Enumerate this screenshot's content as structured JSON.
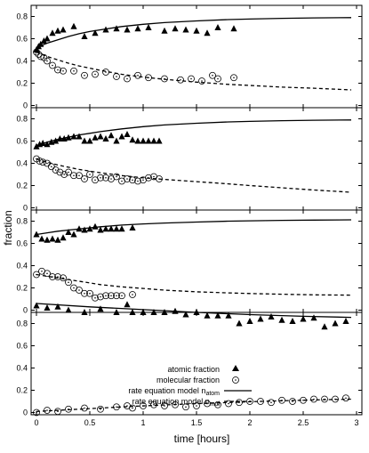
{
  "chart_data": {
    "type": "scatter",
    "xlabel": "time [hours]",
    "ylabel": "fraction",
    "xlim": [
      -0.05,
      3.05
    ],
    "ylim": [
      -0.02,
      0.9
    ],
    "x_ticks": [
      0,
      0.5,
      1,
      1.5,
      2,
      2.5,
      3
    ],
    "x_tick_labels": [
      "0",
      "0.5",
      "1",
      "1.5",
      "2",
      "2.5",
      "3"
    ],
    "y_ticks": [
      0,
      0.2,
      0.4,
      0.6,
      0.8
    ],
    "y_tick_labels": [
      "0",
      "0.2",
      "0.4",
      "0.6",
      "0.8"
    ],
    "grid": false,
    "legend": {
      "placement": "lower-left (bottom panel)",
      "entries": [
        {
          "label": "atomic fraction",
          "marker": "filled-triangle"
        },
        {
          "label": "molecular fraction",
          "marker": "dotted-circle"
        },
        {
          "label": "rate equation model n",
          "subscript": "atom",
          "line": "solid"
        },
        {
          "label": "rate equation model n",
          "subscript": "mol",
          "line": "dashed"
        }
      ]
    },
    "panels": [
      {
        "series": [
          {
            "name": "atomic fraction",
            "marker": "triangle",
            "x": [
              0.0,
              0.02,
              0.04,
              0.07,
              0.1,
              0.15,
              0.2,
              0.25,
              0.35,
              0.45,
              0.55,
              0.65,
              0.75,
              0.85,
              0.95,
              1.05,
              1.2,
              1.3,
              1.4,
              1.5,
              1.6,
              1.7,
              1.85
            ],
            "y": [
              0.5,
              0.53,
              0.55,
              0.58,
              0.6,
              0.65,
              0.67,
              0.68,
              0.71,
              0.62,
              0.65,
              0.68,
              0.69,
              0.68,
              0.69,
              0.7,
              0.67,
              0.69,
              0.68,
              0.67,
              0.65,
              0.7,
              0.69
            ]
          },
          {
            "name": "molecular fraction",
            "marker": "dotted-circle",
            "x": [
              0.0,
              0.02,
              0.04,
              0.07,
              0.1,
              0.15,
              0.2,
              0.25,
              0.35,
              0.45,
              0.55,
              0.65,
              0.75,
              0.85,
              0.95,
              1.05,
              1.2,
              1.35,
              1.45,
              1.55,
              1.65,
              1.7,
              1.85
            ],
            "y": [
              0.48,
              0.46,
              0.44,
              0.43,
              0.4,
              0.36,
              0.32,
              0.31,
              0.31,
              0.27,
              0.28,
              0.3,
              0.26,
              0.24,
              0.27,
              0.25,
              0.24,
              0.23,
              0.24,
              0.22,
              0.27,
              0.24,
              0.25
            ]
          },
          {
            "name": "rate equation model n_atom",
            "line": "solid",
            "x": [
              0,
              0.1,
              0.2,
              0.3,
              0.4,
              0.5,
              0.6,
              0.8,
              1.0,
              1.2,
              1.5,
              1.8,
              2.0,
              2.3,
              2.6,
              2.95
            ],
            "y": [
              0.52,
              0.56,
              0.59,
              0.62,
              0.645,
              0.665,
              0.68,
              0.71,
              0.73,
              0.745,
              0.76,
              0.772,
              0.777,
              0.783,
              0.787,
              0.79
            ]
          },
          {
            "name": "rate equation model n_mol",
            "line": "dashed",
            "x": [
              0,
              0.1,
              0.2,
              0.3,
              0.4,
              0.5,
              0.6,
              0.8,
              1.0,
              1.2,
              1.5,
              1.8,
              2.0,
              2.3,
              2.6,
              2.95
            ],
            "y": [
              0.48,
              0.44,
              0.41,
              0.38,
              0.355,
              0.335,
              0.315,
              0.28,
              0.255,
              0.235,
              0.21,
              0.19,
              0.18,
              0.165,
              0.155,
              0.14
            ]
          }
        ]
      },
      {
        "series": [
          {
            "name": "atomic fraction",
            "marker": "triangle",
            "x": [
              0.0,
              0.03,
              0.06,
              0.1,
              0.14,
              0.18,
              0.22,
              0.26,
              0.3,
              0.35,
              0.4,
              0.45,
              0.5,
              0.55,
              0.6,
              0.65,
              0.7,
              0.75,
              0.8,
              0.85,
              0.9,
              0.95,
              1.0,
              1.05,
              1.1,
              1.15
            ],
            "y": [
              0.55,
              0.57,
              0.58,
              0.57,
              0.59,
              0.6,
              0.62,
              0.62,
              0.63,
              0.64,
              0.64,
              0.6,
              0.6,
              0.63,
              0.64,
              0.62,
              0.65,
              0.6,
              0.64,
              0.66,
              0.61,
              0.6,
              0.6,
              0.6,
              0.6,
              0.6
            ]
          },
          {
            "name": "molecular fraction",
            "marker": "dotted-circle",
            "x": [
              0.0,
              0.03,
              0.06,
              0.1,
              0.14,
              0.18,
              0.22,
              0.26,
              0.3,
              0.35,
              0.4,
              0.45,
              0.5,
              0.55,
              0.6,
              0.65,
              0.7,
              0.75,
              0.8,
              0.85,
              0.9,
              0.95,
              1.0,
              1.05,
              1.1,
              1.15
            ],
            "y": [
              0.44,
              0.42,
              0.41,
              0.4,
              0.37,
              0.34,
              0.32,
              0.3,
              0.32,
              0.29,
              0.29,
              0.26,
              0.3,
              0.25,
              0.27,
              0.27,
              0.26,
              0.28,
              0.24,
              0.26,
              0.25,
              0.24,
              0.25,
              0.27,
              0.28,
              0.26
            ]
          },
          {
            "name": "rate equation model n_atom",
            "line": "solid",
            "x": [
              0,
              0.1,
              0.2,
              0.3,
              0.4,
              0.5,
              0.6,
              0.8,
              1.0,
              1.2,
              1.5,
              1.8,
              2.0,
              2.3,
              2.6,
              2.95
            ],
            "y": [
              0.56,
              0.59,
              0.615,
              0.635,
              0.655,
              0.67,
              0.685,
              0.71,
              0.73,
              0.745,
              0.76,
              0.772,
              0.777,
              0.783,
              0.787,
              0.79
            ]
          },
          {
            "name": "rate equation model n_mol",
            "line": "dashed",
            "x": [
              0,
              0.1,
              0.2,
              0.3,
              0.4,
              0.5,
              0.6,
              0.8,
              1.0,
              1.2,
              1.5,
              1.8,
              2.0,
              2.3,
              2.6,
              2.95
            ],
            "y": [
              0.44,
              0.41,
              0.385,
              0.365,
              0.345,
              0.33,
              0.315,
              0.29,
              0.27,
              0.255,
              0.235,
              0.215,
              0.2,
              0.18,
              0.16,
              0.14
            ]
          }
        ]
      },
      {
        "series": [
          {
            "name": "atomic fraction",
            "marker": "triangle",
            "x": [
              0.0,
              0.05,
              0.1,
              0.15,
              0.2,
              0.25,
              0.3,
              0.35,
              0.4,
              0.45,
              0.5,
              0.55,
              0.6,
              0.65,
              0.7,
              0.75,
              0.8,
              0.9
            ],
            "y": [
              0.68,
              0.64,
              0.63,
              0.64,
              0.63,
              0.65,
              0.7,
              0.68,
              0.73,
              0.72,
              0.73,
              0.75,
              0.72,
              0.73,
              0.73,
              0.73,
              0.73,
              0.74
            ]
          },
          {
            "name": "molecular fraction",
            "marker": "dotted-circle",
            "x": [
              0.0,
              0.05,
              0.1,
              0.15,
              0.2,
              0.25,
              0.3,
              0.35,
              0.4,
              0.45,
              0.5,
              0.55,
              0.6,
              0.65,
              0.7,
              0.75,
              0.8,
              0.9
            ],
            "y": [
              0.32,
              0.35,
              0.33,
              0.3,
              0.3,
              0.29,
              0.25,
              0.2,
              0.18,
              0.15,
              0.15,
              0.11,
              0.12,
              0.13,
              0.13,
              0.13,
              0.13,
              0.14
            ]
          },
          {
            "name": "rate equation model n_atom",
            "line": "solid",
            "x": [
              0,
              0.1,
              0.2,
              0.3,
              0.4,
              0.5,
              0.6,
              0.8,
              1.0,
              1.2,
              1.5,
              1.8,
              2.0,
              2.3,
              2.6,
              2.95
            ],
            "y": [
              0.68,
              0.695,
              0.71,
              0.72,
              0.73,
              0.74,
              0.75,
              0.765,
              0.775,
              0.783,
              0.792,
              0.8,
              0.803,
              0.807,
              0.81,
              0.812
            ]
          },
          {
            "name": "rate equation model n_mol",
            "line": "dashed",
            "x": [
              0,
              0.1,
              0.2,
              0.3,
              0.4,
              0.5,
              0.6,
              0.8,
              1.0,
              1.2,
              1.5,
              1.8,
              2.0,
              2.3,
              2.6,
              2.95
            ],
            "y": [
              0.32,
              0.305,
              0.29,
              0.275,
              0.26,
              0.245,
              0.23,
              0.21,
              0.195,
              0.18,
              0.165,
              0.155,
              0.15,
              0.143,
              0.138,
              0.135
            ]
          }
        ]
      },
      {
        "series": [
          {
            "name": "atomic fraction",
            "marker": "triangle",
            "x": [
              0.0,
              0.1,
              0.2,
              0.3,
              0.45,
              0.6,
              0.75,
              0.85,
              0.9,
              1.0,
              1.1,
              1.2,
              1.3,
              1.4,
              1.5,
              1.6,
              1.7,
              1.8,
              1.9,
              2.0,
              2.1,
              2.2,
              2.3,
              2.4,
              2.5,
              2.6,
              2.7,
              2.8,
              2.9
            ],
            "y": [
              0.96,
              0.94,
              0.95,
              0.92,
              0.9,
              0.93,
              0.9,
              0.97,
              0.9,
              0.9,
              0.9,
              0.9,
              0.91,
              0.88,
              0.9,
              0.87,
              0.87,
              0.87,
              0.8,
              0.82,
              0.84,
              0.86,
              0.83,
              0.82,
              0.84,
              0.85,
              0.77,
              0.8,
              0.82
            ]
          },
          {
            "name": "molecular fraction",
            "marker": "dotted-circle",
            "x": [
              0.0,
              0.1,
              0.2,
              0.3,
              0.45,
              0.6,
              0.75,
              0.85,
              0.9,
              1.0,
              1.1,
              1.2,
              1.3,
              1.4,
              1.5,
              1.6,
              1.7,
              1.8,
              1.9,
              2.0,
              2.1,
              2.2,
              2.3,
              2.4,
              2.5,
              2.6,
              2.7,
              2.8,
              2.9
            ],
            "y": [
              0.0,
              0.02,
              0.01,
              0.03,
              0.04,
              0.03,
              0.05,
              0.06,
              0.04,
              0.06,
              0.07,
              0.06,
              0.07,
              0.05,
              0.06,
              0.08,
              0.07,
              0.08,
              0.09,
              0.1,
              0.1,
              0.09,
              0.11,
              0.1,
              0.11,
              0.12,
              0.12,
              0.12,
              0.13
            ]
          },
          {
            "name": "rate equation model n_atom",
            "line": "solid",
            "x": [
              0,
              0.5,
              1.0,
              1.5,
              2.0,
              2.5,
              2.95
            ],
            "y": [
              0.98,
              0.95,
              0.925,
              0.9,
              0.88,
              0.865,
              0.855
            ]
          },
          {
            "name": "rate equation model n_mol",
            "line": "dashed",
            "x": [
              0,
              0.3,
              0.6,
              0.9,
              1.2,
              1.5,
              1.8,
              2.1,
              2.4,
              2.7,
              2.95
            ],
            "y": [
              0.01,
              0.025,
              0.04,
              0.055,
              0.068,
              0.08,
              0.09,
              0.1,
              0.108,
              0.115,
              0.12
            ]
          }
        ]
      }
    ]
  }
}
